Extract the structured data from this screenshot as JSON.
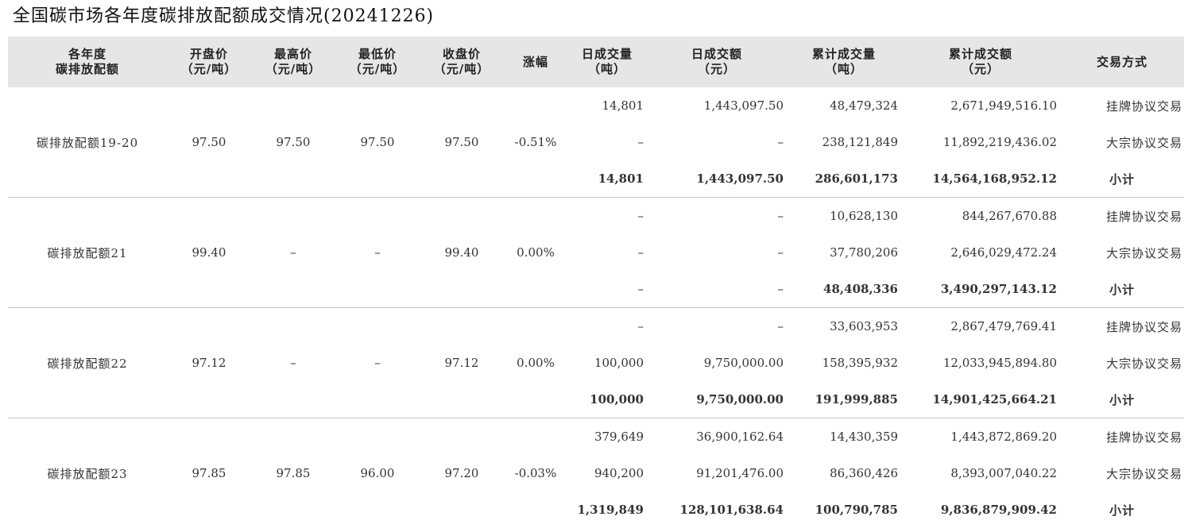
{
  "title": "全国碳市场各年度碳排放配额成交情况(20241226)",
  "headers": [
    "各年度\n碳排放配额",
    "开盘价\n（元/吨）",
    "最高价\n（元/吨）",
    "最低价\n（元/吨）",
    "收盘价\n（元/吨）",
    "涨幅",
    "日成交量\n（吨）",
    "日成交额\n（元）",
    "累计成交量\n（吨）",
    "累计成交额\n（元）",
    "交易方式"
  ],
  "groups": [
    {
      "name": "碳排放配额19-20",
      "open": "97.50",
      "high": "97.50",
      "low": "97.50",
      "close": "97.50",
      "change": "-0.51%",
      "rows": [
        {
          "daily_volume": "14,801",
          "daily_amount": "1,443,097.50",
          "cum_volume": "48,479,324",
          "cum_amount": "2,671,949,516.10",
          "method": "挂牌协议交易"
        },
        {
          "daily_volume": "–",
          "daily_amount": "–",
          "cum_volume": "238,121,849",
          "cum_amount": "11,892,219,436.02",
          "method": "大宗协议交易"
        },
        {
          "daily_volume": "14,801",
          "daily_amount": "1,443,097.50",
          "cum_volume": "286,601,173",
          "cum_amount": "14,564,168,952.12",
          "method": "小计"
        }
      ]
    },
    {
      "name": "碳排放配额21",
      "open": "99.40",
      "high": "–",
      "low": "–",
      "close": "99.40",
      "change": "0.00%",
      "rows": [
        {
          "daily_volume": "–",
          "daily_amount": "–",
          "cum_volume": "10,628,130",
          "cum_amount": "844,267,670.88",
          "method": "挂牌协议交易"
        },
        {
          "daily_volume": "–",
          "daily_amount": "–",
          "cum_volume": "37,780,206",
          "cum_amount": "2,646,029,472.24",
          "method": "大宗协议交易"
        },
        {
          "daily_volume": "–",
          "daily_amount": "–",
          "cum_volume": "48,408,336",
          "cum_amount": "3,490,297,143.12",
          "method": "小计"
        }
      ]
    },
    {
      "name": "碳排放配额22",
      "open": "97.12",
      "high": "–",
      "low": "–",
      "close": "97.12",
      "change": "0.00%",
      "rows": [
        {
          "daily_volume": "–",
          "daily_amount": "–",
          "cum_volume": "33,603,953",
          "cum_amount": "2,867,479,769.41",
          "method": "挂牌协议交易"
        },
        {
          "daily_volume": "100,000",
          "daily_amount": "9,750,000.00",
          "cum_volume": "158,395,932",
          "cum_amount": "12,033,945,894.80",
          "method": "大宗协议交易"
        },
        {
          "daily_volume": "100,000",
          "daily_amount": "9,750,000.00",
          "cum_volume": "191,999,885",
          "cum_amount": "14,901,425,664.21",
          "method": "小计"
        }
      ]
    },
    {
      "name": "碳排放配额23",
      "open": "97.85",
      "high": "97.85",
      "low": "96.00",
      "close": "97.20",
      "change": "-0.03%",
      "rows": [
        {
          "daily_volume": "379,649",
          "daily_amount": "36,900,162.64",
          "cum_volume": "14,430,359",
          "cum_amount": "1,443,872,869.20",
          "method": "挂牌协议交易"
        },
        {
          "daily_volume": "940,200",
          "daily_amount": "91,201,476.00",
          "cum_volume": "86,360,426",
          "cum_amount": "8,393,007,040.22",
          "method": "大宗协议交易"
        },
        {
          "daily_volume": "1,319,849",
          "daily_amount": "128,101,638.64",
          "cum_volume": "100,790,785",
          "cum_amount": "9,836,879,909.42",
          "method": "小计"
        }
      ]
    }
  ]
}
